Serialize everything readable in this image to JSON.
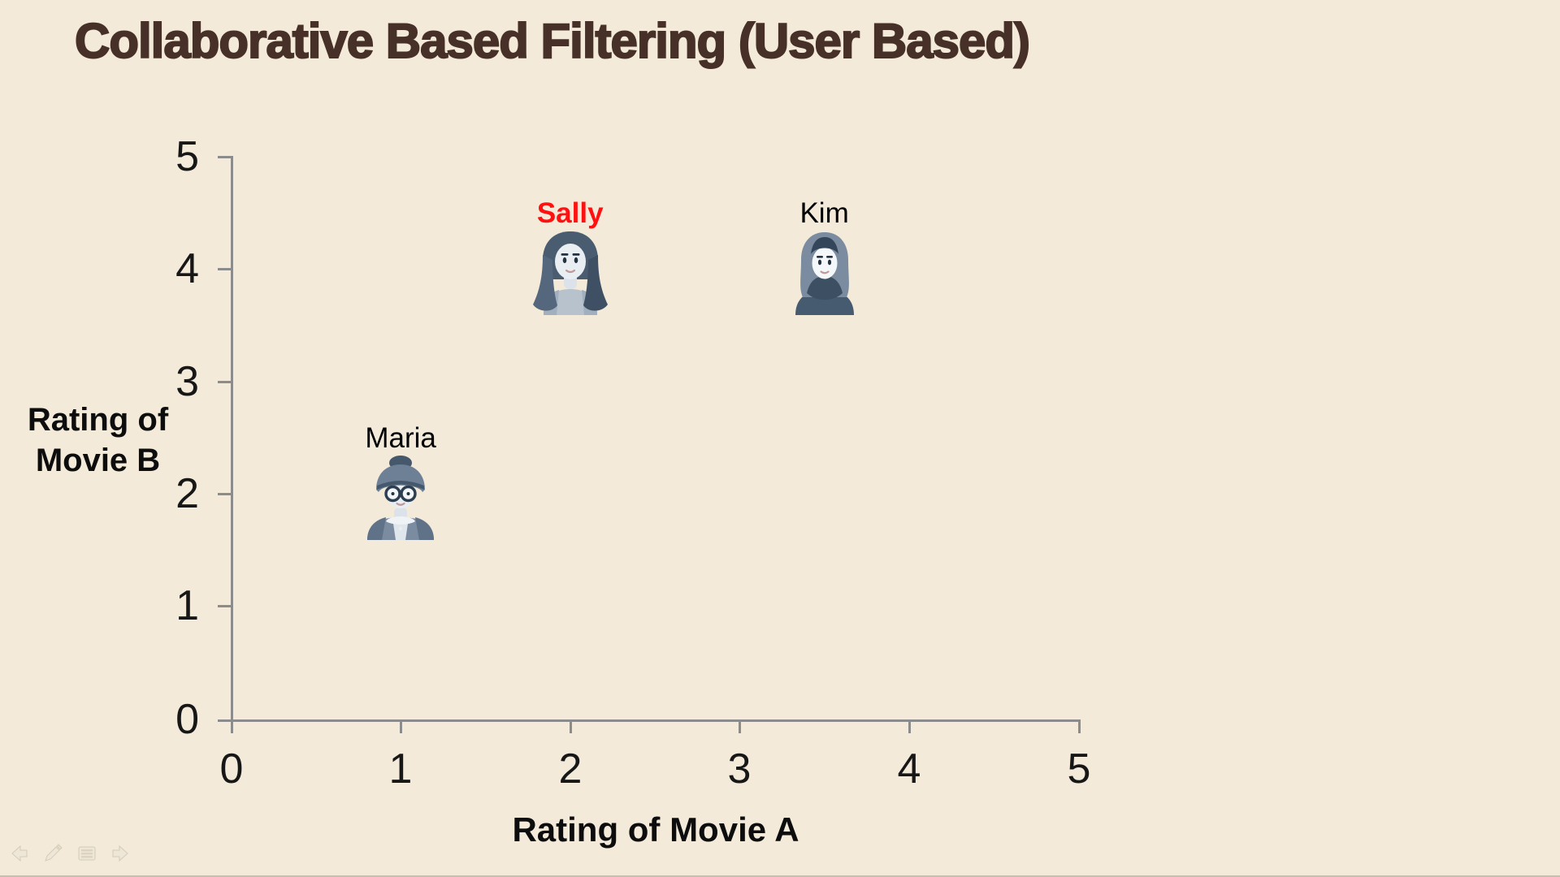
{
  "slide": {
    "title": "Collaborative Based Filtering (User Based)",
    "background_color": "#f3ead9",
    "title_color": "#463028",
    "axis_color": "#8c8c8c",
    "highlight_color": "#ff1111"
  },
  "chart_data": {
    "type": "scatter",
    "title": "Collaborative Based Filtering (User Based)",
    "xlabel": "Rating of Movie A",
    "ylabel": "Rating of\nMovie B",
    "xlim": [
      0,
      5
    ],
    "ylim": [
      0,
      5
    ],
    "x_tick_labels": [
      "0",
      "1",
      "2",
      "3",
      "4",
      "5"
    ],
    "y_tick_labels": [
      "0",
      "1",
      "2",
      "3",
      "4",
      "5"
    ],
    "grid": false,
    "legend": "none",
    "points": [
      {
        "name": "Sally",
        "x": 2,
        "y": 4,
        "label_color": "#ff1111",
        "bold": true,
        "avatar": "woman-long-hair-icon"
      },
      {
        "name": "Kim",
        "x": 3.5,
        "y": 4,
        "label_color": "#000000",
        "bold": false,
        "avatar": "woman-hijab-icon"
      },
      {
        "name": "Maria",
        "x": 1,
        "y": 2,
        "label_color": "#000000",
        "bold": false,
        "avatar": "older-woman-glasses-icon"
      }
    ]
  },
  "slide_controls": {
    "items": [
      "previous-slide",
      "pen-tool",
      "slide-menu",
      "next-slide"
    ]
  }
}
